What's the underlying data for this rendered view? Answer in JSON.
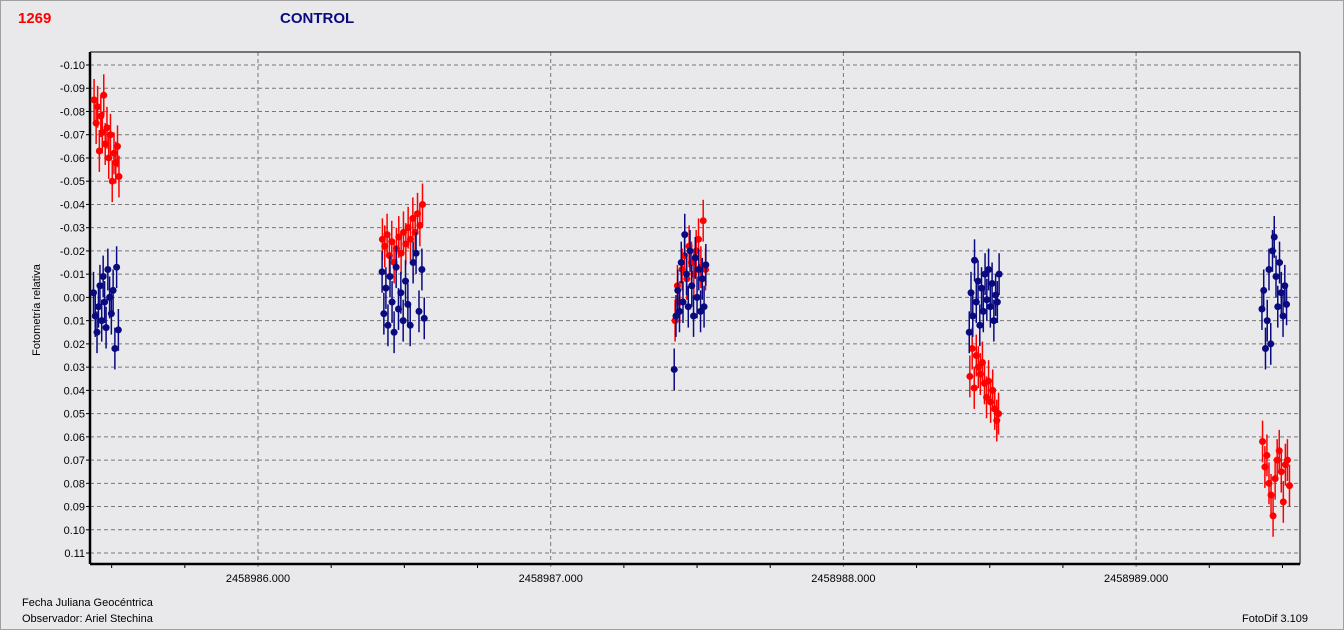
{
  "header": {
    "id_label": "1269",
    "title": "CONTROL"
  },
  "footer": {
    "xlabel": "Fecha Juliana Geocéntrica",
    "observer": "Observador: Ariel Stechina",
    "version": "FotoDif 3.109"
  },
  "chart_data": {
    "type": "scatter",
    "title": "CONTROL",
    "xlabel": "Fecha Juliana Geocéntrica",
    "ylabel": "Fotometría relativa",
    "xlim": [
      2458985.425,
      2458989.553
    ],
    "ylim": [
      -0.105,
      0.115
    ],
    "y_inverted": true,
    "grid": true,
    "x_ticks": [
      2458986,
      2458987,
      2458988,
      2458989
    ],
    "x_tick_labels": [
      "2458986.000",
      "2458987.000",
      "2458988.000",
      "2458989.000"
    ],
    "y_ticks": [
      -0.1,
      -0.09,
      -0.08,
      -0.07,
      -0.06,
      -0.05,
      -0.04,
      -0.03,
      -0.02,
      -0.01,
      0.0,
      0.01,
      0.02,
      0.03,
      0.04,
      0.05,
      0.06,
      0.07,
      0.08,
      0.09,
      0.1,
      0.11
    ],
    "y_tick_labels": [
      "-0.10",
      "-0.09",
      "-0.08",
      "-0.07",
      "-0.06",
      "-0.05",
      "-0.04",
      "-0.03",
      "-0.02",
      "-0.01",
      "0.00",
      "0.01",
      "0.02",
      "0.03",
      "0.04",
      "0.05",
      "0.06",
      "0.07",
      "0.08",
      "0.09",
      "0.10",
      "0.11"
    ],
    "error": 0.009,
    "series": [
      {
        "color": "#ff0000",
        "points": [
          [
            2458985.44,
            -0.085
          ],
          [
            2458985.447,
            -0.075
          ],
          [
            2458985.452,
            -0.082
          ],
          [
            2458985.458,
            -0.063
          ],
          [
            2458985.463,
            -0.078
          ],
          [
            2458985.468,
            -0.071
          ],
          [
            2458985.473,
            -0.087
          ],
          [
            2458985.478,
            -0.066
          ],
          [
            2458985.484,
            -0.073
          ],
          [
            2458985.49,
            -0.06
          ],
          [
            2458985.496,
            -0.07
          ],
          [
            2458985.502,
            -0.05
          ],
          [
            2458985.508,
            -0.062
          ],
          [
            2458985.514,
            -0.058
          ],
          [
            2458985.52,
            -0.065
          ],
          [
            2458985.525,
            -0.052
          ],
          [
            2458986.425,
            -0.025
          ],
          [
            2458986.433,
            -0.022
          ],
          [
            2458986.441,
            -0.027
          ],
          [
            2458986.449,
            -0.018
          ],
          [
            2458986.457,
            -0.024
          ],
          [
            2458986.465,
            -0.015
          ],
          [
            2458986.473,
            -0.021
          ],
          [
            2458986.481,
            -0.026
          ],
          [
            2458986.489,
            -0.019
          ],
          [
            2458986.497,
            -0.028
          ],
          [
            2458986.505,
            -0.023
          ],
          [
            2458986.513,
            -0.03
          ],
          [
            2458986.521,
            -0.025
          ],
          [
            2458986.529,
            -0.034
          ],
          [
            2458986.537,
            -0.028
          ],
          [
            2458986.545,
            -0.036
          ],
          [
            2458986.553,
            -0.031
          ],
          [
            2458986.562,
            -0.04
          ],
          [
            2458987.425,
            0.01
          ],
          [
            2458987.433,
            -0.005
          ],
          [
            2458987.441,
            0.002
          ],
          [
            2458987.449,
            -0.012
          ],
          [
            2458987.457,
            -0.018
          ],
          [
            2458987.465,
            -0.008
          ],
          [
            2458987.473,
            -0.022
          ],
          [
            2458987.481,
            -0.015
          ],
          [
            2458987.489,
            -0.01
          ],
          [
            2458987.497,
            -0.02
          ],
          [
            2458987.505,
            -0.025
          ],
          [
            2458987.513,
            -0.013
          ],
          [
            2458987.521,
            -0.033
          ],
          [
            2458987.529,
            -0.012
          ],
          [
            2458988.432,
            0.034
          ],
          [
            2458988.44,
            0.022
          ],
          [
            2458988.447,
            0.039
          ],
          [
            2458988.454,
            0.025
          ],
          [
            2458988.461,
            0.03
          ],
          [
            2458988.468,
            0.033
          ],
          [
            2458988.475,
            0.028
          ],
          [
            2458988.482,
            0.037
          ],
          [
            2458988.489,
            0.043
          ],
          [
            2458988.496,
            0.036
          ],
          [
            2458988.503,
            0.045
          ],
          [
            2458988.51,
            0.04
          ],
          [
            2458988.517,
            0.048
          ],
          [
            2458988.524,
            0.053
          ],
          [
            2458988.53,
            0.05
          ],
          [
            2458989.432,
            0.062
          ],
          [
            2458989.44,
            0.073
          ],
          [
            2458989.447,
            0.068
          ],
          [
            2458989.454,
            0.08
          ],
          [
            2458989.461,
            0.085
          ],
          [
            2458989.468,
            0.094
          ],
          [
            2458989.475,
            0.078
          ],
          [
            2458989.482,
            0.07
          ],
          [
            2458989.489,
            0.066
          ],
          [
            2458989.496,
            0.075
          ],
          [
            2458989.503,
            0.088
          ],
          [
            2458989.51,
            0.072
          ],
          [
            2458989.517,
            0.07
          ],
          [
            2458989.524,
            0.081
          ]
        ]
      },
      {
        "color": "#0a0a80",
        "points": [
          [
            2458985.438,
            -0.002
          ],
          [
            2458985.444,
            0.008
          ],
          [
            2458985.45,
            0.015
          ],
          [
            2458985.455,
            0.004
          ],
          [
            2458985.46,
            -0.005
          ],
          [
            2458985.466,
            0.01
          ],
          [
            2458985.471,
            -0.009
          ],
          [
            2458985.476,
            0.002
          ],
          [
            2458985.481,
            0.013
          ],
          [
            2458985.487,
            -0.012
          ],
          [
            2458985.493,
            0.0
          ],
          [
            2458985.499,
            0.007
          ],
          [
            2458985.505,
            -0.003
          ],
          [
            2458985.511,
            0.022
          ],
          [
            2458985.517,
            -0.013
          ],
          [
            2458985.523,
            0.014
          ],
          [
            2458986.424,
            -0.011
          ],
          [
            2458986.43,
            0.007
          ],
          [
            2458986.437,
            -0.004
          ],
          [
            2458986.444,
            0.012
          ],
          [
            2458986.451,
            -0.009
          ],
          [
            2458986.458,
            0.002
          ],
          [
            2458986.465,
            0.015
          ],
          [
            2458986.472,
            -0.013
          ],
          [
            2458986.48,
            0.005
          ],
          [
            2458986.488,
            -0.002
          ],
          [
            2458986.496,
            0.01
          ],
          [
            2458986.504,
            -0.007
          ],
          [
            2458986.512,
            0.003
          ],
          [
            2458986.52,
            0.012
          ],
          [
            2458986.53,
            -0.015
          ],
          [
            2458986.54,
            -0.019
          ],
          [
            2458986.55,
            0.006
          ],
          [
            2458986.56,
            -0.012
          ],
          [
            2458986.568,
            0.009
          ],
          [
            2458987.422,
            0.031
          ],
          [
            2458987.428,
            0.008
          ],
          [
            2458987.434,
            -0.003
          ],
          [
            2458987.44,
            0.006
          ],
          [
            2458987.446,
            -0.015
          ],
          [
            2458987.452,
            0.002
          ],
          [
            2458987.458,
            -0.027
          ],
          [
            2458987.464,
            -0.01
          ],
          [
            2458987.47,
            0.004
          ],
          [
            2458987.476,
            -0.02
          ],
          [
            2458987.482,
            -0.005
          ],
          [
            2458987.488,
            0.008
          ],
          [
            2458987.494,
            -0.017
          ],
          [
            2458987.5,
            0.0
          ],
          [
            2458987.506,
            -0.012
          ],
          [
            2458987.512,
            0.006
          ],
          [
            2458987.518,
            -0.008
          ],
          [
            2458987.524,
            0.004
          ],
          [
            2458987.53,
            -0.014
          ],
          [
            2458988.43,
            0.015
          ],
          [
            2458988.436,
            -0.002
          ],
          [
            2458988.442,
            0.008
          ],
          [
            2458988.448,
            -0.016
          ],
          [
            2458988.454,
            0.002
          ],
          [
            2458988.46,
            -0.007
          ],
          [
            2458988.466,
            0.012
          ],
          [
            2458988.472,
            -0.004
          ],
          [
            2458988.478,
            0.006
          ],
          [
            2458988.484,
            -0.01
          ],
          [
            2458988.49,
            0.001
          ],
          [
            2458988.496,
            -0.012
          ],
          [
            2458988.502,
            0.004
          ],
          [
            2458988.508,
            -0.006
          ],
          [
            2458988.514,
            0.01
          ],
          [
            2458988.52,
            -0.001
          ],
          [
            2458988.526,
            0.002
          ],
          [
            2458988.532,
            -0.01
          ],
          [
            2458989.43,
            0.005
          ],
          [
            2458989.436,
            -0.003
          ],
          [
            2458989.442,
            0.022
          ],
          [
            2458989.448,
            0.01
          ],
          [
            2458989.454,
            -0.012
          ],
          [
            2458989.46,
            0.02
          ],
          [
            2458989.466,
            -0.02
          ],
          [
            2458989.472,
            -0.026
          ],
          [
            2458989.478,
            -0.009
          ],
          [
            2458989.484,
            0.004
          ],
          [
            2458989.49,
            -0.015
          ],
          [
            2458989.496,
            -0.002
          ],
          [
            2458989.502,
            0.008
          ],
          [
            2458989.508,
            -0.005
          ],
          [
            2458989.514,
            0.003
          ]
        ]
      }
    ]
  }
}
